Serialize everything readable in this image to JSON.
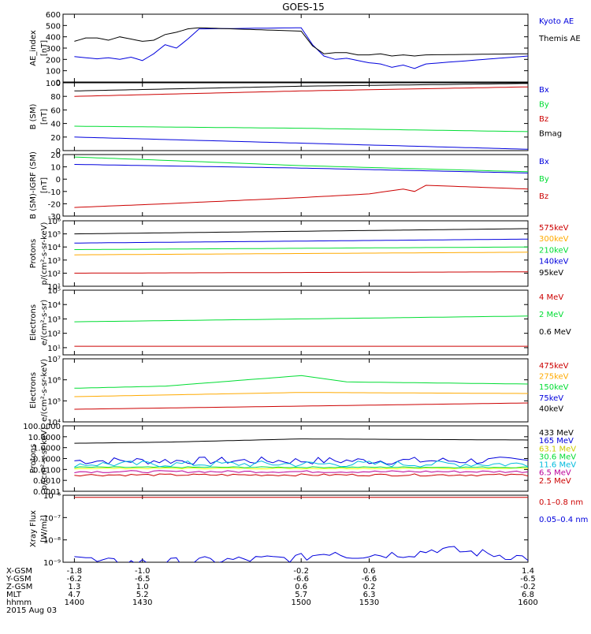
{
  "title": "GOES-15",
  "colors": {
    "blue": "#0000dd",
    "black": "#000000",
    "red": "#cc0000",
    "green": "#00dd33",
    "orange": "#ffaa00",
    "cyan": "#00bbdd",
    "yellow": "#ffff00",
    "magenta": "#bb0099"
  },
  "chart_data": [
    {
      "type": "line",
      "ylabel": "AE_index\n[nT]",
      "scale": "linear",
      "ylim": [
        0,
        600
      ],
      "ticks": [
        0,
        100,
        200,
        300,
        400,
        500,
        600
      ],
      "tick_labels": [
        "0",
        "100",
        "200",
        "300",
        "400",
        "500",
        "600"
      ],
      "series": [
        {
          "name": "Kyoto AE",
          "color": "#0000dd",
          "x": [
            1400,
            1405,
            1410,
            1415,
            1420,
            1425,
            1430,
            1435,
            1440,
            1445,
            1450,
            1455,
            1500,
            1505,
            1510,
            1515,
            1520,
            1525,
            1530,
            1535,
            1540,
            1545,
            1550,
            1555,
            1600
          ],
          "y": [
            225,
            215,
            205,
            215,
            200,
            220,
            190,
            250,
            330,
            300,
            380,
            470,
            480,
            330,
            230,
            200,
            210,
            190,
            170,
            160,
            130,
            150,
            120,
            160,
            230
          ]
        },
        {
          "name": "Themis AE",
          "color": "#000000",
          "x": [
            1400,
            1405,
            1410,
            1415,
            1420,
            1425,
            1430,
            1435,
            1440,
            1445,
            1450,
            1455,
            1500,
            1505,
            1510,
            1515,
            1520,
            1525,
            1530,
            1535,
            1540,
            1545,
            1550,
            1555,
            1600
          ],
          "y": [
            360,
            390,
            390,
            370,
            400,
            380,
            360,
            370,
            420,
            440,
            470,
            480,
            450,
            320,
            250,
            260,
            260,
            240,
            240,
            250,
            230,
            240,
            230,
            240,
            250
          ]
        }
      ]
    },
    {
      "type": "line",
      "ylabel": "B (SM)\n[nT]",
      "scale": "linear",
      "ylim": [
        0,
        100
      ],
      "ticks": [
        0,
        20,
        40,
        60,
        80,
        100
      ],
      "tick_labels": [
        "0",
        "20",
        "40",
        "60",
        "80",
        "100"
      ],
      "series": [
        {
          "name": "Bx",
          "color": "#0000dd",
          "x": [
            1400,
            1600
          ],
          "y": [
            20,
            2
          ]
        },
        {
          "name": "By",
          "color": "#00dd33",
          "x": [
            1400,
            1500,
            1600
          ],
          "y": [
            36,
            33,
            28
          ]
        },
        {
          "name": "Bz",
          "color": "#cc0000",
          "x": [
            1400,
            1500,
            1600
          ],
          "y": [
            80,
            88,
            94
          ]
        },
        {
          "name": "Bmag",
          "color": "#000000",
          "x": [
            1400,
            1500,
            1600
          ],
          "y": [
            88,
            95,
            99
          ]
        }
      ]
    },
    {
      "type": "line",
      "ylabel": "B (SM)-IGRF (SM)\n[nT]",
      "scale": "linear",
      "ylim": [
        -30,
        20
      ],
      "ticks": [
        -30,
        -20,
        -10,
        0,
        10,
        20
      ],
      "tick_labels": [
        "-30",
        "-20",
        "-10",
        "0",
        "10",
        "20"
      ],
      "series": [
        {
          "name": "Bx",
          "color": "#0000dd",
          "x": [
            1400,
            1500,
            1600
          ],
          "y": [
            12,
            9,
            5
          ]
        },
        {
          "name": "By",
          "color": "#00dd33",
          "x": [
            1400,
            1430,
            1500,
            1600
          ],
          "y": [
            18,
            16,
            11,
            6
          ]
        },
        {
          "name": "Bz",
          "color": "#cc0000",
          "x": [
            1400,
            1440,
            1500,
            1530,
            1545,
            1550,
            1555,
            1600
          ],
          "y": [
            -23,
            -20,
            -15,
            -12,
            -8,
            -10,
            -5,
            -8
          ]
        }
      ]
    },
    {
      "type": "line",
      "ylabel": "Protons\np/(cm²-s-sr-keV)",
      "scale": "log",
      "ylim": [
        1,
        6
      ],
      "ticks": [
        1,
        2,
        3,
        4,
        5,
        6
      ],
      "tick_labels": [
        "10¹",
        "10²",
        "10³",
        "10⁴",
        "10⁵",
        "10⁶"
      ],
      "series": [
        {
          "name": "575keV",
          "color": "#cc0000",
          "x": [
            1400,
            1600
          ],
          "y": [
            2.0,
            2.1
          ]
        },
        {
          "name": "300keV",
          "color": "#ffaa00",
          "x": [
            1400,
            1600
          ],
          "y": [
            3.4,
            3.6
          ]
        },
        {
          "name": "210keV",
          "color": "#00dd33",
          "x": [
            1400,
            1600
          ],
          "y": [
            3.8,
            4.0
          ]
        },
        {
          "name": "140keV",
          "color": "#0000dd",
          "x": [
            1400,
            1600
          ],
          "y": [
            4.3,
            4.6
          ]
        },
        {
          "name": "95keV",
          "color": "#000000",
          "x": [
            1400,
            1600
          ],
          "y": [
            5.0,
            5.4
          ]
        }
      ]
    },
    {
      "type": "line",
      "ylabel": "Electrons\ne/(cm²-s-sr)",
      "scale": "log",
      "ylim": [
        0.5,
        5
      ],
      "ticks": [
        1,
        2,
        3,
        4,
        5
      ],
      "tick_labels": [
        "10¹",
        "10²",
        "10³",
        "10⁴",
        "10⁵"
      ],
      "series": [
        {
          "name": "4 MeV",
          "color": "#cc0000",
          "x": [
            1400,
            1600
          ],
          "y": [
            1.1,
            1.1
          ]
        },
        {
          "name": "2 MeV",
          "color": "#00dd33",
          "x": [
            1400,
            1600
          ],
          "y": [
            2.8,
            3.2
          ]
        },
        {
          "name": "0.6 MeV",
          "color": "#000000",
          "x": [
            1400,
            1600
          ],
          "y": [
            5.0,
            5.0
          ]
        }
      ]
    },
    {
      "type": "line",
      "ylabel": "Electrons\ne/(cm²-s-sr-keV)",
      "scale": "log",
      "ylim": [
        4,
        7
      ],
      "ticks": [
        4,
        5,
        6,
        7
      ],
      "tick_labels": [
        "10⁴",
        "10⁵",
        "10⁶",
        "10⁷"
      ],
      "series": [
        {
          "name": "475keV",
          "color": "#cc0000",
          "x": [
            1400,
            1600
          ],
          "y": [
            4.6,
            4.9
          ]
        },
        {
          "name": "275keV",
          "color": "#ffaa00",
          "x": [
            1400,
            1500,
            1600
          ],
          "y": [
            5.2,
            5.4,
            5.35
          ]
        },
        {
          "name": "150keV",
          "color": "#00dd33",
          "x": [
            1400,
            1440,
            1500,
            1520,
            1600
          ],
          "y": [
            5.6,
            5.7,
            6.2,
            5.9,
            5.8
          ]
        },
        {
          "name": "75keV",
          "color": "#0000dd",
          "x": [
            1400,
            1600
          ],
          "y": [
            7.0,
            7.0
          ]
        },
        {
          "name": "40keV",
          "color": "#000000",
          "x": [
            1400,
            1600
          ],
          "y": [
            7.0,
            7.0
          ]
        }
      ]
    },
    {
      "type": "line",
      "ylabel": "Protons\np/(cm²-s-sr-keV)",
      "scale": "log",
      "ylim": [
        -4,
        2
      ],
      "ticks": [
        -4,
        -3,
        -2,
        -1,
        0,
        1,
        2
      ],
      "tick_labels": [
        "0.0001",
        "0.0010",
        "0.0100",
        "0.1000",
        "1.0000",
        "10.0000",
        "100.0000"
      ],
      "series": [
        {
          "name": "433 MeV",
          "color": "#000000",
          "x": [
            1400,
            1440,
            1500,
            1600
          ],
          "y": [
            0.4,
            0.5,
            0.8,
            0.7
          ]
        },
        {
          "name": "165 MeV",
          "color": "#0000dd",
          "x": [
            1400,
            1600
          ],
          "y": [
            -1.2,
            -1.2
          ],
          "noise": 0.35
        },
        {
          "name": "63.1 MeV",
          "color": "#ffff00",
          "x": [
            1400,
            1600
          ],
          "y": [
            -1.9,
            -1.9
          ],
          "noise": 0.05
        },
        {
          "name": "30.6 MeV",
          "color": "#00dd33",
          "x": [
            1400,
            1600
          ],
          "y": [
            -1.8,
            -1.8
          ],
          "noise": 0.05
        },
        {
          "name": "11.6 MeV",
          "color": "#00bbdd",
          "x": [
            1400,
            1600
          ],
          "y": [
            -1.5,
            -1.5
          ],
          "noise": 0.3
        },
        {
          "name": "6.5 MeV",
          "color": "#bb0099",
          "x": [
            1400,
            1600
          ],
          "y": [
            -2.2,
            -2.2
          ],
          "noise": 0.1
        },
        {
          "name": "2.5 MeV",
          "color": "#cc0000",
          "x": [
            1400,
            1600
          ],
          "y": [
            -2.5,
            -2.5
          ],
          "noise": 0.1
        }
      ]
    },
    {
      "type": "line",
      "ylabel": "Xray Flux\n[W/m²]",
      "scale": "log",
      "ylim": [
        -9,
        -6
      ],
      "ticks": [
        -9,
        -8,
        -7,
        -6
      ],
      "tick_labels": [
        "10⁻⁹",
        "10⁻⁸",
        "10⁻⁷",
        "10⁻⁶"
      ],
      "series": [
        {
          "name": "0.1–0.8 nm",
          "color": "#cc0000",
          "x": [
            1400,
            1500,
            1600
          ],
          "y": [
            -6.1,
            -6.1,
            -6.1
          ]
        },
        {
          "name": "0.05–0.4 nm",
          "color": "#0000dd",
          "x": [
            1400,
            1405,
            1410,
            1440,
            1500,
            1510,
            1515,
            1520,
            1550,
            1560,
            1600
          ],
          "y": [
            -8.6,
            -8.8,
            -9,
            -9,
            -8.8,
            -8.6,
            -8.5,
            -8.7,
            -8.6,
            -8.4,
            -8.8
          ],
          "noise": 0.2
        }
      ]
    }
  ],
  "xaxis": {
    "xlim": [
      1395,
      1600
    ],
    "tick_positions": [
      1400,
      1430,
      1500,
      1530,
      1600
    ],
    "rows": [
      {
        "label": "X-GSM",
        "values": [
          "-1.8",
          "-1.0",
          "-0.2",
          "0.6",
          "1.4"
        ]
      },
      {
        "label": "Y-GSM",
        "values": [
          "-6.2",
          "-6.5",
          "-6.6",
          "-6.6",
          "-6.5"
        ]
      },
      {
        "label": "Z-GSM",
        "values": [
          "1.3",
          "1.0",
          "0.6",
          "0.2",
          "-0.2"
        ]
      },
      {
        "label": "MLT",
        "values": [
          "4.7",
          "5.2",
          "5.7",
          "6.3",
          "6.8"
        ]
      },
      {
        "label": "hhmm",
        "values": [
          "1400",
          "1430",
          "1500",
          "1530",
          "1600"
        ]
      }
    ],
    "date": "2015 Aug 03"
  }
}
